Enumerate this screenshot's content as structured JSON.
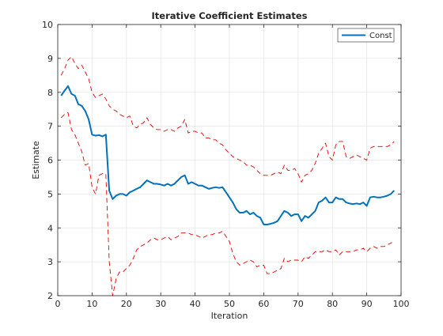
{
  "chart_data": {
    "type": "line",
    "title": "Iterative Coefficient Estimates",
    "xlabel": "Iteration",
    "ylabel": "Estimate",
    "xlim": [
      0,
      100
    ],
    "ylim": [
      2,
      10
    ],
    "xticks": [
      0,
      10,
      20,
      30,
      40,
      50,
      60,
      70,
      80,
      90,
      100
    ],
    "yticks": [
      2,
      3,
      4,
      5,
      6,
      7,
      8,
      9,
      10
    ],
    "grid": true,
    "legend": {
      "entries": [
        "Const"
      ],
      "placement": "top-right"
    },
    "colors": {
      "estimate": "#0072BD",
      "bounds": "#E00000",
      "grid": "#E6E6E6",
      "axes": "#262626"
    },
    "series": [
      {
        "name": "Const",
        "style": "solid",
        "x": [
          1,
          2,
          3,
          4,
          5,
          6,
          7,
          8,
          9,
          10,
          11,
          12,
          13,
          14,
          15,
          16,
          17,
          18,
          19,
          20,
          21,
          22,
          23,
          24,
          25,
          26,
          27,
          28,
          29,
          30,
          31,
          32,
          33,
          34,
          35,
          36,
          37,
          38,
          39,
          40,
          41,
          42,
          43,
          44,
          45,
          46,
          47,
          48,
          49,
          50,
          51,
          52,
          53,
          54,
          55,
          56,
          57,
          58,
          59,
          60,
          61,
          62,
          63,
          64,
          65,
          66,
          67,
          68,
          69,
          70,
          71,
          72,
          73,
          74,
          75,
          76,
          77,
          78,
          79,
          80,
          81,
          82,
          83,
          84,
          85,
          86,
          87,
          88,
          89,
          90,
          91,
          92,
          93,
          94,
          95,
          96,
          97,
          98
        ],
        "values": [
          7.9,
          8.05,
          8.18,
          7.95,
          7.9,
          7.65,
          7.6,
          7.45,
          7.2,
          6.75,
          6.72,
          6.74,
          6.7,
          6.75,
          5.1,
          4.85,
          4.95,
          5.0,
          5.0,
          4.95,
          5.05,
          5.1,
          5.15,
          5.2,
          5.3,
          5.4,
          5.35,
          5.3,
          5.3,
          5.28,
          5.25,
          5.3,
          5.25,
          5.3,
          5.4,
          5.5,
          5.55,
          5.3,
          5.35,
          5.3,
          5.25,
          5.25,
          5.2,
          5.15,
          5.18,
          5.2,
          5.18,
          5.2,
          5.05,
          4.9,
          4.75,
          4.55,
          4.45,
          4.45,
          4.5,
          4.4,
          4.45,
          4.35,
          4.3,
          4.1,
          4.1,
          4.12,
          4.15,
          4.2,
          4.35,
          4.5,
          4.45,
          4.35,
          4.4,
          4.4,
          4.2,
          4.35,
          4.3,
          4.4,
          4.5,
          4.75,
          4.8,
          4.9,
          4.75,
          4.75,
          4.9,
          4.85,
          4.85,
          4.75,
          4.72,
          4.7,
          4.72,
          4.7,
          4.75,
          4.65,
          4.9,
          4.92,
          4.9,
          4.9,
          4.92,
          4.95,
          5.0,
          5.1
        ]
      },
      {
        "name": "",
        "style": "dashed",
        "x": [
          1,
          2,
          3,
          4,
          5,
          6,
          7,
          8,
          9,
          10,
          11,
          12,
          13,
          14,
          15,
          16,
          17,
          18,
          19,
          20,
          21,
          22,
          23,
          24,
          25,
          26,
          27,
          28,
          29,
          30,
          31,
          32,
          33,
          34,
          35,
          36,
          37,
          38,
          39,
          40,
          41,
          42,
          43,
          44,
          45,
          46,
          47,
          48,
          49,
          50,
          51,
          52,
          53,
          54,
          55,
          56,
          57,
          58,
          59,
          60,
          61,
          62,
          63,
          64,
          65,
          66,
          67,
          68,
          69,
          70,
          71,
          72,
          73,
          74,
          75,
          76,
          77,
          78,
          79,
          80,
          81,
          82,
          83,
          84,
          85,
          86,
          87,
          88,
          89,
          90,
          91,
          92,
          93,
          94,
          95,
          96,
          97,
          98
        ],
        "values": [
          8.5,
          8.7,
          8.95,
          9.05,
          8.85,
          8.7,
          8.8,
          8.6,
          8.4,
          8.0,
          7.85,
          7.9,
          7.95,
          7.8,
          7.6,
          7.5,
          7.45,
          7.35,
          7.3,
          7.25,
          7.3,
          7.0,
          6.95,
          7.05,
          7.1,
          7.25,
          7.05,
          6.95,
          6.9,
          6.9,
          6.85,
          6.9,
          6.9,
          6.85,
          6.95,
          7.0,
          7.2,
          6.8,
          6.85,
          6.85,
          6.8,
          6.8,
          6.65,
          6.65,
          6.6,
          6.6,
          6.5,
          6.45,
          6.3,
          6.2,
          6.1,
          6.05,
          6.0,
          5.95,
          5.85,
          5.85,
          5.8,
          5.7,
          5.6,
          5.55,
          5.55,
          5.55,
          5.6,
          5.65,
          5.6,
          5.85,
          5.7,
          5.7,
          5.75,
          5.6,
          5.35,
          5.55,
          5.6,
          5.7,
          5.9,
          6.2,
          6.35,
          6.5,
          6.1,
          6.0,
          6.45,
          6.55,
          6.55,
          6.1,
          6.05,
          6.1,
          6.15,
          6.1,
          6.05,
          6.0,
          6.35,
          6.4,
          6.4,
          6.4,
          6.4,
          6.4,
          6.45,
          6.55
        ]
      },
      {
        "name": "",
        "style": "dashed",
        "x": [
          1,
          2,
          3,
          4,
          5,
          6,
          7,
          8,
          9,
          10,
          11,
          12,
          13,
          14,
          15,
          16,
          17,
          18,
          19,
          20,
          21,
          22,
          23,
          24,
          25,
          26,
          27,
          28,
          29,
          30,
          31,
          32,
          33,
          34,
          35,
          36,
          37,
          38,
          39,
          40,
          41,
          42,
          43,
          44,
          45,
          46,
          47,
          48,
          49,
          50,
          51,
          52,
          53,
          54,
          55,
          56,
          57,
          58,
          59,
          60,
          61,
          62,
          63,
          64,
          65,
          66,
          67,
          68,
          69,
          70,
          71,
          72,
          73,
          74,
          75,
          76,
          77,
          78,
          79,
          80,
          81,
          82,
          83,
          84,
          85,
          86,
          87,
          88,
          89,
          90,
          91,
          92,
          93,
          94,
          95,
          96,
          97,
          98
        ],
        "values": [
          7.25,
          7.35,
          7.4,
          6.9,
          6.75,
          6.5,
          6.25,
          5.85,
          5.9,
          5.2,
          5.0,
          5.55,
          5.6,
          5.6,
          3.0,
          2.0,
          2.5,
          2.7,
          2.7,
          2.8,
          2.9,
          3.1,
          3.35,
          3.45,
          3.5,
          3.55,
          3.65,
          3.7,
          3.65,
          3.65,
          3.7,
          3.75,
          3.65,
          3.7,
          3.75,
          3.85,
          3.85,
          3.85,
          3.8,
          3.8,
          3.75,
          3.7,
          3.75,
          3.8,
          3.8,
          3.85,
          3.85,
          3.9,
          3.75,
          3.6,
          3.25,
          3.0,
          2.9,
          2.95,
          3.0,
          3.05,
          3.0,
          2.85,
          2.9,
          2.9,
          2.65,
          2.65,
          2.7,
          2.75,
          2.8,
          3.1,
          3.0,
          3.05,
          3.05,
          3.05,
          3.0,
          3.15,
          3.1,
          3.2,
          3.3,
          3.3,
          3.3,
          3.35,
          3.3,
          3.3,
          3.35,
          3.2,
          3.3,
          3.3,
          3.3,
          3.3,
          3.35,
          3.35,
          3.4,
          3.3,
          3.4,
          3.45,
          3.4,
          3.45,
          3.45,
          3.5,
          3.55,
          3.6
        ]
      }
    ]
  }
}
